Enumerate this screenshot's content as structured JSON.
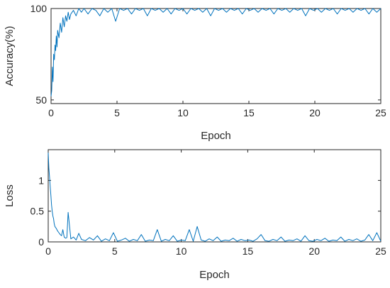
{
  "chart_data": [
    {
      "type": "line",
      "title": "",
      "xlabel": "Epoch",
      "ylabel": "Accuracy(%)",
      "xlim": [
        0,
        25
      ],
      "ylim": [
        48,
        100
      ],
      "xticks": [
        0,
        5,
        10,
        15,
        20,
        25
      ],
      "yticks": [
        50,
        100
      ],
      "grid": false,
      "color": "#0072BD",
      "series": [
        {
          "x": [
            0,
            0.05,
            0.1,
            0.15,
            0.2,
            0.25,
            0.3,
            0.35,
            0.4,
            0.45,
            0.5,
            0.6,
            0.7,
            0.8,
            0.9,
            1.0,
            1.1,
            1.2,
            1.3,
            1.4,
            1.5,
            1.7,
            1.9,
            2.1,
            2.3,
            2.5,
            2.8,
            3.1,
            3.4,
            3.7,
            4.0,
            4.3,
            4.6,
            4.9,
            5.2,
            5.5,
            5.8,
            6.1,
            6.4,
            6.7,
            7.0,
            7.3,
            7.6,
            7.9,
            8.2,
            8.5,
            8.8,
            9.1,
            9.4,
            9.7,
            10.0,
            10.3,
            10.6,
            10.9,
            11.2,
            11.5,
            11.8,
            12.1,
            12.4,
            12.7,
            13.0,
            13.3,
            13.6,
            13.9,
            14.2,
            14.5,
            14.8,
            15.1,
            15.4,
            15.7,
            16.0,
            16.3,
            16.6,
            16.9,
            17.2,
            17.5,
            17.8,
            18.1,
            18.4,
            18.7,
            19.0,
            19.3,
            19.6,
            19.9,
            20.2,
            20.5,
            20.8,
            21.1,
            21.4,
            21.7,
            22.0,
            22.3,
            22.6,
            22.9,
            23.2,
            23.5,
            23.8,
            24.1,
            24.4,
            24.7,
            25.0
          ],
          "values": [
            52,
            55,
            68,
            60,
            75,
            72,
            80,
            77,
            85,
            79,
            88,
            84,
            92,
            87,
            95,
            90,
            96,
            93,
            98,
            94,
            97,
            99,
            96,
            100,
            98,
            100,
            97,
            100,
            99,
            96,
            100,
            98,
            100,
            93,
            100,
            99,
            100,
            97,
            100,
            99,
            100,
            96,
            100,
            99,
            100,
            98,
            100,
            97,
            100,
            99,
            100,
            97,
            100,
            99,
            100,
            98,
            100,
            96,
            100,
            99,
            100,
            98,
            100,
            99,
            100,
            97,
            100,
            99,
            100,
            98,
            100,
            99,
            100,
            97,
            100,
            99,
            100,
            98,
            100,
            99,
            100,
            96,
            100,
            99,
            100,
            98,
            100,
            99,
            100,
            97,
            100,
            99,
            100,
            98,
            100,
            99,
            100,
            97,
            100,
            98,
            100
          ]
        }
      ]
    },
    {
      "type": "line",
      "title": "",
      "xlabel": "Epoch",
      "ylabel": "Loss",
      "xlim": [
        0,
        25
      ],
      "ylim": [
        0,
        1.5
      ],
      "xticks": [
        0,
        5,
        10,
        15,
        20,
        25
      ],
      "yticks": [
        0,
        0.5,
        1
      ],
      "ytick_labels": [
        "0",
        "0.5",
        "1"
      ],
      "grid": false,
      "color": "#0072BD",
      "series": [
        {
          "x": [
            0,
            0.05,
            0.1,
            0.15,
            0.2,
            0.25,
            0.3,
            0.35,
            0.4,
            0.45,
            0.5,
            0.6,
            0.7,
            0.8,
            0.9,
            1.0,
            1.1,
            1.2,
            1.3,
            1.4,
            1.5,
            1.7,
            1.9,
            2.1,
            2.3,
            2.5,
            2.8,
            3.1,
            3.4,
            3.7,
            4.0,
            4.3,
            4.6,
            4.9,
            5.2,
            5.5,
            5.8,
            6.1,
            6.4,
            6.7,
            7.0,
            7.3,
            7.6,
            7.9,
            8.2,
            8.5,
            8.8,
            9.1,
            9.4,
            9.7,
            10.0,
            10.3,
            10.6,
            10.9,
            11.2,
            11.5,
            11.8,
            12.1,
            12.4,
            12.7,
            13.0,
            13.3,
            13.6,
            13.9,
            14.2,
            14.5,
            14.8,
            15.1,
            15.4,
            15.7,
            16.0,
            16.3,
            16.6,
            16.9,
            17.2,
            17.5,
            17.8,
            18.1,
            18.4,
            18.7,
            19.0,
            19.3,
            19.6,
            19.9,
            20.2,
            20.5,
            20.8,
            21.1,
            21.4,
            21.7,
            22.0,
            22.3,
            22.6,
            22.9,
            23.2,
            23.5,
            23.8,
            24.1,
            24.4,
            24.7,
            25.0
          ],
          "values": [
            1.45,
            1.2,
            1.05,
            0.9,
            0.75,
            0.6,
            0.5,
            0.42,
            0.38,
            0.3,
            0.25,
            0.22,
            0.18,
            0.15,
            0.12,
            0.1,
            0.2,
            0.08,
            0.06,
            0.07,
            0.48,
            0.05,
            0.08,
            0.03,
            0.14,
            0.04,
            0.02,
            0.07,
            0.03,
            0.1,
            0.01,
            0.05,
            0.02,
            0.15,
            0.01,
            0.03,
            0.06,
            0.01,
            0.04,
            0.02,
            0.12,
            0.01,
            0.03,
            0.02,
            0.2,
            0.01,
            0.04,
            0.02,
            0.1,
            0.01,
            0.03,
            0.02,
            0.2,
            0.01,
            0.25,
            0.03,
            0.01,
            0.05,
            0.02,
            0.08,
            0.01,
            0.03,
            0.02,
            0.06,
            0.01,
            0.04,
            0.02,
            0.03,
            0.01,
            0.05,
            0.12,
            0.02,
            0.01,
            0.04,
            0.02,
            0.08,
            0.01,
            0.03,
            0.02,
            0.05,
            0.01,
            0.1,
            0.02,
            0.01,
            0.04,
            0.02,
            0.06,
            0.01,
            0.03,
            0.02,
            0.08,
            0.01,
            0.04,
            0.02,
            0.05,
            0.01,
            0.03,
            0.12,
            0.02,
            0.15,
            0.01
          ]
        }
      ]
    }
  ]
}
